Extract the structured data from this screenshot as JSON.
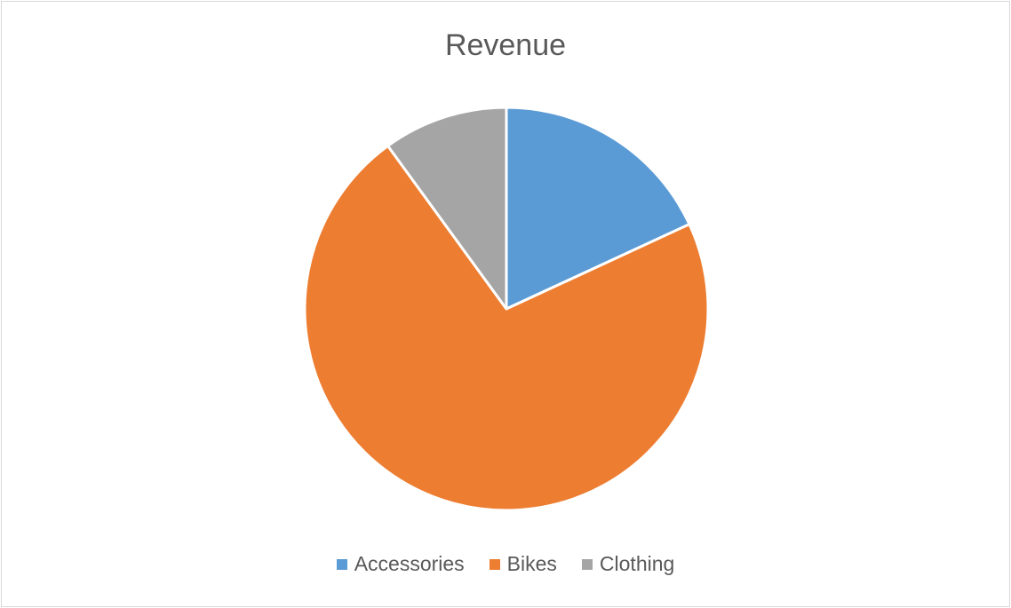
{
  "chart_data": {
    "type": "pie",
    "title": "Revenue",
    "categories": [
      "Accessories",
      "Bikes",
      "Clothing"
    ],
    "values": [
      18.1,
      71.9,
      10.0
    ],
    "colors": [
      "#5b9bd5",
      "#ed7d31",
      "#a5a5a5"
    ],
    "legend": "bottom",
    "start": "top",
    "direction": "clockwise"
  }
}
